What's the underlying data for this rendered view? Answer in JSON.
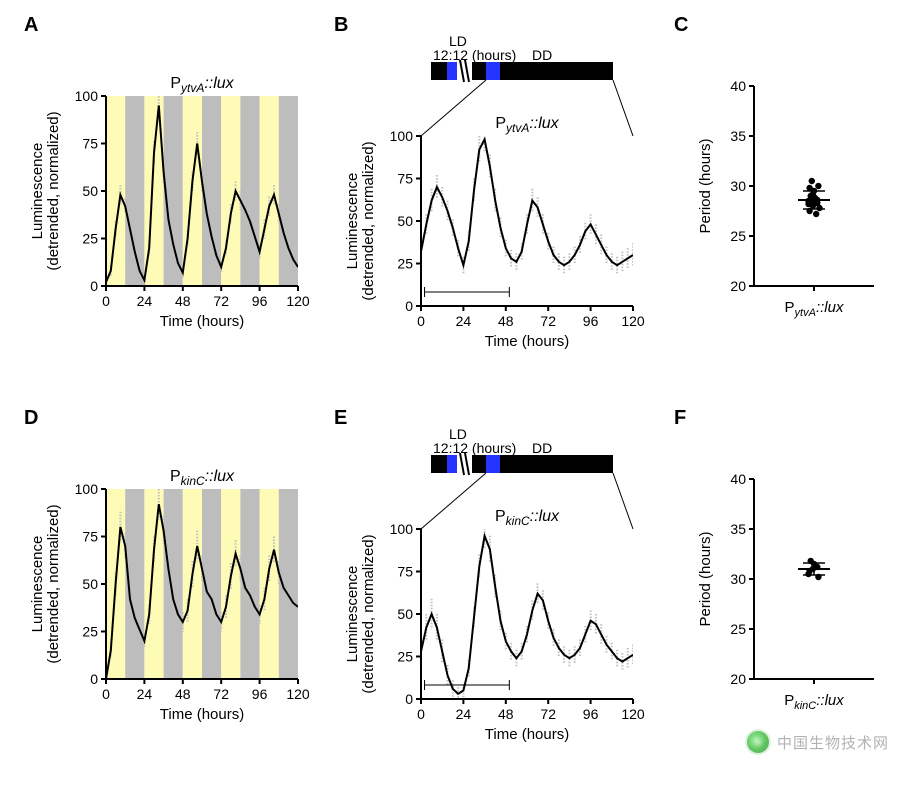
{
  "panels": {
    "A": {
      "label": "A",
      "title_pre": "P",
      "title_sub": "ytvA",
      "title_post": "::lux",
      "ylabel_top": "Luminescence",
      "ylabel_bottom": "(detrended, normalized)",
      "xlabel": "Time (hours)"
    },
    "B": {
      "label": "B",
      "title_pre": "P",
      "title_sub": "ytvA",
      "title_post": "::lux",
      "ylabel_top": "Luminescence",
      "ylabel_bottom": "(detrended, normalized)",
      "xlabel": "Time (hours)",
      "schematic": {
        "ld": "LD",
        "ratio": "12:12 (hours)",
        "dd": "DD"
      }
    },
    "C": {
      "label": "C",
      "ylabel": "Period (hours)",
      "xcat_pre": "P",
      "xcat_sub": "ytvA",
      "xcat_post": "::lux"
    },
    "D": {
      "label": "D",
      "title_pre": "P",
      "title_sub": "kinC",
      "title_post": "::lux",
      "ylabel_top": "Luminescence",
      "ylabel_bottom": "(detrended, normalized)",
      "xlabel": "Time (hours)"
    },
    "E": {
      "label": "E",
      "title_pre": "P",
      "title_sub": "kinC",
      "title_post": "::lux",
      "ylabel_top": "Luminescence",
      "ylabel_bottom": "(detrended, normalized)",
      "xlabel": "Time (hours)",
      "schematic": {
        "ld": "LD",
        "ratio": "12:12 (hours)",
        "dd": "DD"
      }
    },
    "F": {
      "label": "F",
      "ylabel": "Period (hours)",
      "xcat_pre": "P",
      "xcat_sub": "kinC",
      "xcat_post": "::lux"
    }
  },
  "chart_style": {
    "axis_color": "#000000",
    "line_color": "#000000",
    "error_color": "#bfbfbf",
    "yellow_band": "#fdfbb5",
    "grey_band": "#bdbdbd",
    "blue_block": "#2634ff",
    "black_block": "#000000",
    "background": "#ffffff",
    "axis_width": 2,
    "line_width": 2
  },
  "axes": {
    "x": {
      "min": 0,
      "max": 120,
      "ticks": [
        0,
        24,
        48,
        72,
        96,
        120
      ]
    },
    "y_lum": {
      "min": 0,
      "max": 100,
      "ticks": [
        0,
        25,
        50,
        75,
        100
      ]
    },
    "y_period": {
      "min": 20,
      "max": 40,
      "ticks": [
        20,
        25,
        30,
        35,
        40
      ]
    }
  },
  "bands_LD": [
    {
      "from": 0,
      "to": 12,
      "c": "yellow"
    },
    {
      "from": 12,
      "to": 24,
      "c": "grey"
    },
    {
      "from": 24,
      "to": 36,
      "c": "yellow"
    },
    {
      "from": 36,
      "to": 48,
      "c": "grey"
    },
    {
      "from": 48,
      "to": 60,
      "c": "yellow"
    },
    {
      "from": 60,
      "to": 72,
      "c": "grey"
    },
    {
      "from": 72,
      "to": 84,
      "c": "yellow"
    },
    {
      "from": 84,
      "to": 96,
      "c": "grey"
    },
    {
      "from": 96,
      "to": 108,
      "c": "yellow"
    },
    {
      "from": 108,
      "to": 120,
      "c": "grey"
    }
  ],
  "data_A": {
    "x": [
      0,
      3,
      6,
      9,
      12,
      15,
      18,
      21,
      24,
      27,
      30,
      33,
      36,
      39,
      42,
      45,
      48,
      51,
      54,
      57,
      60,
      63,
      66,
      69,
      72,
      75,
      78,
      81,
      84,
      87,
      90,
      93,
      96,
      99,
      102,
      105,
      108,
      111,
      114,
      117,
      120
    ],
    "y": [
      2,
      8,
      30,
      48,
      42,
      30,
      18,
      8,
      3,
      20,
      70,
      95,
      60,
      35,
      22,
      12,
      7,
      25,
      55,
      75,
      55,
      38,
      26,
      16,
      10,
      20,
      38,
      50,
      45,
      40,
      34,
      26,
      18,
      30,
      42,
      48,
      38,
      28,
      20,
      14,
      10
    ],
    "err": [
      2,
      3,
      4,
      5,
      4,
      4,
      4,
      3,
      3,
      4,
      6,
      8,
      6,
      5,
      4,
      3,
      3,
      4,
      5,
      6,
      5,
      5,
      4,
      4,
      3,
      4,
      5,
      5,
      5,
      5,
      4,
      4,
      4,
      5,
      5,
      5,
      5,
      4,
      4,
      3,
      3
    ]
  },
  "data_B": {
    "x": [
      0,
      3,
      6,
      9,
      12,
      15,
      18,
      21,
      24,
      27,
      30,
      33,
      36,
      39,
      42,
      45,
      48,
      51,
      54,
      57,
      60,
      63,
      66,
      69,
      72,
      75,
      78,
      81,
      84,
      87,
      90,
      93,
      96,
      99,
      102,
      105,
      108,
      111,
      114,
      117,
      120
    ],
    "y": [
      32,
      48,
      62,
      70,
      64,
      56,
      46,
      34,
      24,
      38,
      68,
      92,
      98,
      82,
      62,
      46,
      34,
      28,
      26,
      32,
      48,
      62,
      58,
      48,
      38,
      30,
      26,
      24,
      26,
      30,
      36,
      44,
      48,
      42,
      36,
      30,
      26,
      24,
      26,
      28,
      30
    ],
    "err": [
      5,
      6,
      7,
      7,
      6,
      6,
      5,
      5,
      5,
      6,
      7,
      8,
      8,
      7,
      7,
      6,
      5,
      5,
      5,
      5,
      6,
      7,
      6,
      6,
      5,
      5,
      5,
      5,
      5,
      5,
      5,
      5,
      6,
      6,
      6,
      5,
      5,
      5,
      6,
      6,
      7
    ],
    "scalebar_from": 2,
    "scalebar_to": 50
  },
  "data_C": {
    "points": [
      28.5,
      28.0,
      28.3,
      27.5,
      29.5,
      30.0,
      29.0,
      28.8,
      27.8,
      30.5,
      27.2,
      28.2,
      29.2,
      28.6,
      29.8,
      28.4
    ],
    "mean": 28.6,
    "sd": 0.9
  },
  "data_D": {
    "x": [
      0,
      3,
      6,
      9,
      12,
      15,
      18,
      21,
      24,
      27,
      30,
      33,
      36,
      39,
      42,
      45,
      48,
      51,
      54,
      57,
      60,
      63,
      66,
      69,
      72,
      75,
      78,
      81,
      84,
      87,
      90,
      93,
      96,
      99,
      102,
      105,
      108,
      111,
      114,
      117,
      120
    ],
    "y": [
      0,
      15,
      50,
      80,
      70,
      42,
      32,
      26,
      20,
      34,
      68,
      92,
      78,
      58,
      42,
      34,
      30,
      36,
      55,
      70,
      58,
      46,
      42,
      34,
      30,
      38,
      54,
      66,
      58,
      48,
      44,
      38,
      34,
      42,
      58,
      68,
      56,
      48,
      44,
      40,
      38
    ],
    "err": [
      3,
      4,
      6,
      8,
      7,
      6,
      5,
      5,
      4,
      5,
      7,
      8,
      8,
      7,
      6,
      5,
      5,
      6,
      7,
      8,
      7,
      6,
      6,
      5,
      5,
      6,
      7,
      7,
      7,
      6,
      6,
      5,
      5,
      6,
      7,
      7,
      6,
      6,
      5,
      5,
      5
    ]
  },
  "data_E": {
    "x": [
      0,
      3,
      6,
      9,
      12,
      15,
      18,
      21,
      24,
      27,
      30,
      33,
      36,
      39,
      42,
      45,
      48,
      51,
      54,
      57,
      60,
      63,
      66,
      69,
      72,
      75,
      78,
      81,
      84,
      87,
      90,
      93,
      96,
      99,
      102,
      105,
      108,
      111,
      114,
      117,
      120
    ],
    "y": [
      28,
      42,
      50,
      42,
      28,
      14,
      6,
      3,
      5,
      18,
      48,
      78,
      96,
      88,
      66,
      46,
      34,
      28,
      24,
      28,
      38,
      52,
      62,
      58,
      46,
      36,
      30,
      26,
      24,
      26,
      30,
      38,
      46,
      44,
      38,
      32,
      28,
      24,
      22,
      24,
      26
    ],
    "err": [
      6,
      8,
      9,
      8,
      7,
      6,
      5,
      4,
      4,
      5,
      6,
      7,
      8,
      8,
      7,
      6,
      5,
      5,
      5,
      5,
      5,
      6,
      6,
      6,
      5,
      5,
      5,
      5,
      5,
      5,
      5,
      5,
      6,
      6,
      6,
      5,
      5,
      5,
      5,
      6,
      6
    ],
    "scalebar_from": 2,
    "scalebar_to": 50
  },
  "data_F": {
    "points": [
      30.5,
      31.0,
      31.2,
      30.8,
      31.5,
      30.2,
      31.8
    ],
    "mean": 31.0,
    "sd": 0.6
  },
  "watermark": "中国生物技术网"
}
